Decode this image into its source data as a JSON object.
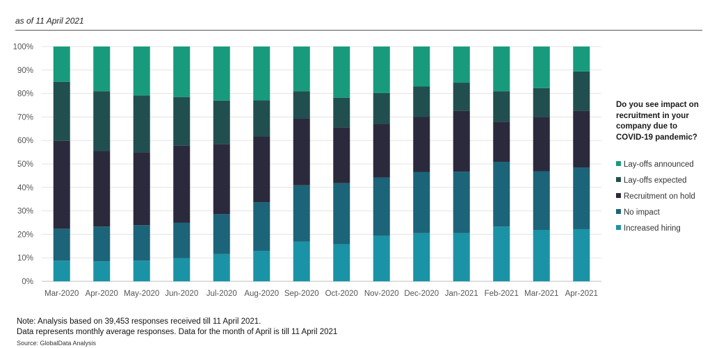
{
  "header": {
    "as_of": "as of 11 April 2021"
  },
  "chart_data": {
    "type": "bar",
    "stacked": true,
    "categories": [
      "Mar-2020",
      "Apr-2020",
      "May-2020",
      "Jun-2020",
      "Jul-2020",
      "Aug-2020",
      "Sep-2020",
      "Oct-2020",
      "Nov-2020",
      "Dec-2020",
      "Jan-2021",
      "Feb-2021",
      "Mar-2021",
      "Apr-2021"
    ],
    "y_ticks": [
      "0%",
      "10%",
      "20%",
      "30%",
      "40%",
      "50%",
      "60%",
      "70%",
      "80%",
      "90%",
      "100%"
    ],
    "ylim": [
      0,
      100
    ],
    "grid": true,
    "legend_position": "right",
    "legend_title": "Do you see impact on recruitment in your company due to COVID-19 pandemic?",
    "series": [
      {
        "name": "Increased hiring",
        "color": "#1a93a6",
        "values": [
          8.8,
          8.5,
          8.8,
          9.9,
          11.6,
          12.9,
          16.9,
          15.8,
          19.4,
          20.5,
          20.5,
          23.3,
          21.9,
          22.2
        ]
      },
      {
        "name": "No impact",
        "color": "#1c6479",
        "values": [
          13.6,
          14.8,
          15.1,
          15.1,
          17.0,
          20.8,
          24.0,
          26.0,
          24.8,
          26.1,
          26.2,
          27.6,
          25.0,
          26.3
        ]
      },
      {
        "name": "Recruitment on hold",
        "color": "#2b2a3d",
        "values": [
          37.4,
          32.3,
          31.0,
          32.8,
          29.8,
          28.0,
          28.5,
          23.8,
          22.8,
          23.5,
          26.0,
          17.1,
          23.1,
          24.1
        ]
      },
      {
        "name": "Lay-offs expected",
        "color": "#214f4f",
        "values": [
          25.2,
          25.4,
          24.3,
          20.7,
          18.6,
          15.4,
          11.6,
          12.6,
          13.2,
          12.9,
          11.9,
          13.0,
          12.3,
          16.8
        ]
      },
      {
        "name": "Lay-offs announced",
        "color": "#179b7c",
        "values": [
          15.0,
          19.0,
          20.8,
          21.5,
          23.0,
          22.9,
          19.0,
          21.8,
          19.8,
          17.0,
          15.4,
          19.0,
          17.7,
          10.6
        ]
      }
    ]
  },
  "notes": {
    "line1": "Note: Analysis based on 39,453 responses received till 11 April 2021.",
    "line2": "Data represents monthly average responses. Data for the month of April is till 11 April 2021",
    "source": "Source: GlobalData Analysis"
  }
}
